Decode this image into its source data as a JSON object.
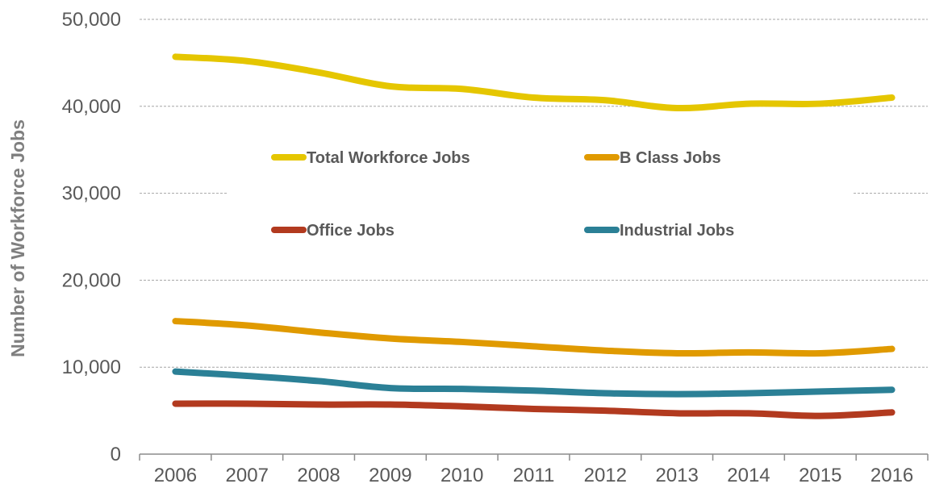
{
  "chart_data": {
    "type": "line",
    "title": "",
    "xlabel": "",
    "ylabel": "Number of Workforce Jobs",
    "ylim": [
      0,
      50000
    ],
    "y_ticks": [
      0,
      10000,
      20000,
      30000,
      40000,
      50000
    ],
    "y_tick_labels": [
      "0",
      "10,000",
      "20,000",
      "30,000",
      "40,000",
      "50,000"
    ],
    "categories": [
      "2006",
      "2007",
      "2008",
      "2009",
      "2010",
      "2011",
      "2012",
      "2013",
      "2014",
      "2015",
      "2016"
    ],
    "grid": "horizontal dashed",
    "legend_position": "inside-top",
    "series": [
      {
        "name": "Total Workforce Jobs",
        "color": "#e5c600",
        "values": [
          45700,
          45200,
          43900,
          42300,
          42000,
          41000,
          40700,
          39800,
          40300,
          40300,
          41000
        ]
      },
      {
        "name": "B Class Jobs",
        "color": "#e09a00",
        "values": [
          15300,
          14800,
          14000,
          13300,
          12900,
          12400,
          11900,
          11600,
          11700,
          11600,
          12100
        ]
      },
      {
        "name": "Office Jobs",
        "color": "#b23a1f",
        "values": [
          5800,
          5800,
          5700,
          5700,
          5500,
          5200,
          5000,
          4700,
          4700,
          4400,
          4800
        ]
      },
      {
        "name": "Industrial Jobs",
        "color": "#2b8096",
        "values": [
          9500,
          9000,
          8400,
          7600,
          7500,
          7300,
          7000,
          6900,
          7000,
          7200,
          7400
        ]
      }
    ]
  }
}
